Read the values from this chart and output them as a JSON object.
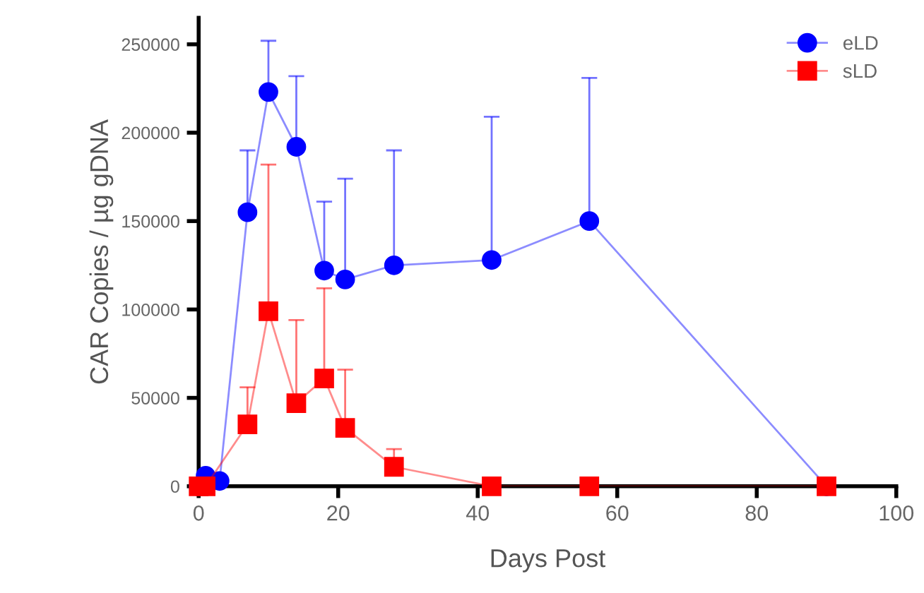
{
  "chart_data": {
    "type": "line",
    "xlabel": "Days Post",
    "ylabel": "CAR Copies / µg gDNA",
    "xlim": [
      0,
      100
    ],
    "xticks": [
      0,
      20,
      40,
      60,
      80,
      100
    ],
    "ylim": [
      0,
      265000
    ],
    "yticks": [
      0,
      50000,
      100000,
      150000,
      200000,
      250000
    ],
    "legend": "top right",
    "grid": false,
    "series": [
      {
        "name": "eLD",
        "color": "#0000ff",
        "marker": "circle",
        "x": [
          0,
          1,
          3,
          7,
          10,
          14,
          18,
          21,
          28,
          42,
          56,
          90
        ],
        "values": [
          0,
          6000,
          3000,
          155000,
          223000,
          192000,
          122000,
          117000,
          125000,
          128000,
          150000,
          0
        ],
        "errors": [
          null,
          null,
          null,
          [
            155000,
            190000
          ],
          [
            223000,
            252000
          ],
          [
            192000,
            232000
          ],
          [
            122000,
            161000
          ],
          [
            117000,
            174000
          ],
          [
            125000,
            190000
          ],
          [
            128000,
            209000
          ],
          [
            150000,
            231000
          ],
          null
        ]
      },
      {
        "name": "sLD",
        "color": "#ff0000",
        "marker": "square",
        "x": [
          0,
          1,
          7,
          10,
          14,
          18,
          21,
          28,
          42,
          56,
          90
        ],
        "values": [
          0,
          0,
          35000,
          99000,
          47000,
          61000,
          33000,
          11000,
          0,
          0,
          0
        ],
        "errors": [
          null,
          null,
          [
            35000,
            56000
          ],
          [
            99000,
            182000
          ],
          [
            47000,
            94000
          ],
          [
            61000,
            112000
          ],
          [
            33000,
            66000
          ],
          [
            11000,
            21000
          ],
          null,
          null,
          null
        ]
      }
    ]
  }
}
